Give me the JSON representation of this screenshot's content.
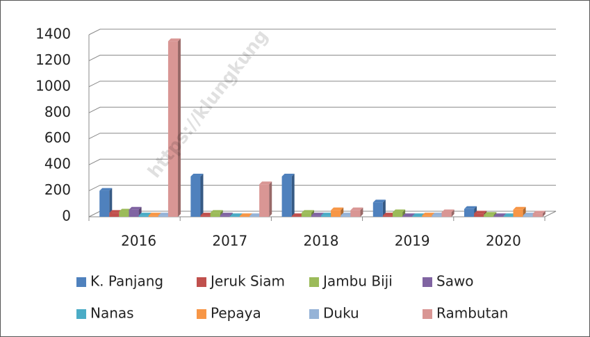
{
  "chart_data": {
    "type": "bar",
    "watermark": "https://klungkung",
    "categories": [
      "2016",
      "2017",
      "2018",
      "2019",
      "2020"
    ],
    "series": [
      {
        "name": "K. Panjang",
        "color": "#4f81bd",
        "values": [
          200,
          310,
          310,
          110,
          60
        ]
      },
      {
        "name": "Jeruk Siam",
        "color": "#c0504d",
        "values": [
          30,
          10,
          5,
          10,
          25
        ]
      },
      {
        "name": "Jambu Biji",
        "color": "#9bbb59",
        "values": [
          40,
          30,
          30,
          35,
          15
        ]
      },
      {
        "name": "Sawo",
        "color": "#8064a2",
        "values": [
          55,
          10,
          10,
          5,
          5
        ]
      },
      {
        "name": "Nanas",
        "color": "#4bacc6",
        "values": [
          10,
          5,
          10,
          5,
          5
        ]
      },
      {
        "name": "Pepaya",
        "color": "#f79646",
        "values": [
          10,
          5,
          50,
          10,
          55
        ]
      },
      {
        "name": "Duku",
        "color": "#95b3d7",
        "values": [
          10,
          5,
          10,
          10,
          10
        ]
      },
      {
        "name": "Rambutan",
        "color": "#d99694",
        "values": [
          1350,
          250,
          50,
          35,
          25
        ]
      }
    ],
    "ylim": [
      0,
      1400
    ],
    "yticks": [
      0,
      200,
      400,
      600,
      800,
      1000,
      1200,
      1400
    ],
    "grid": true,
    "legend": "bottom"
  }
}
